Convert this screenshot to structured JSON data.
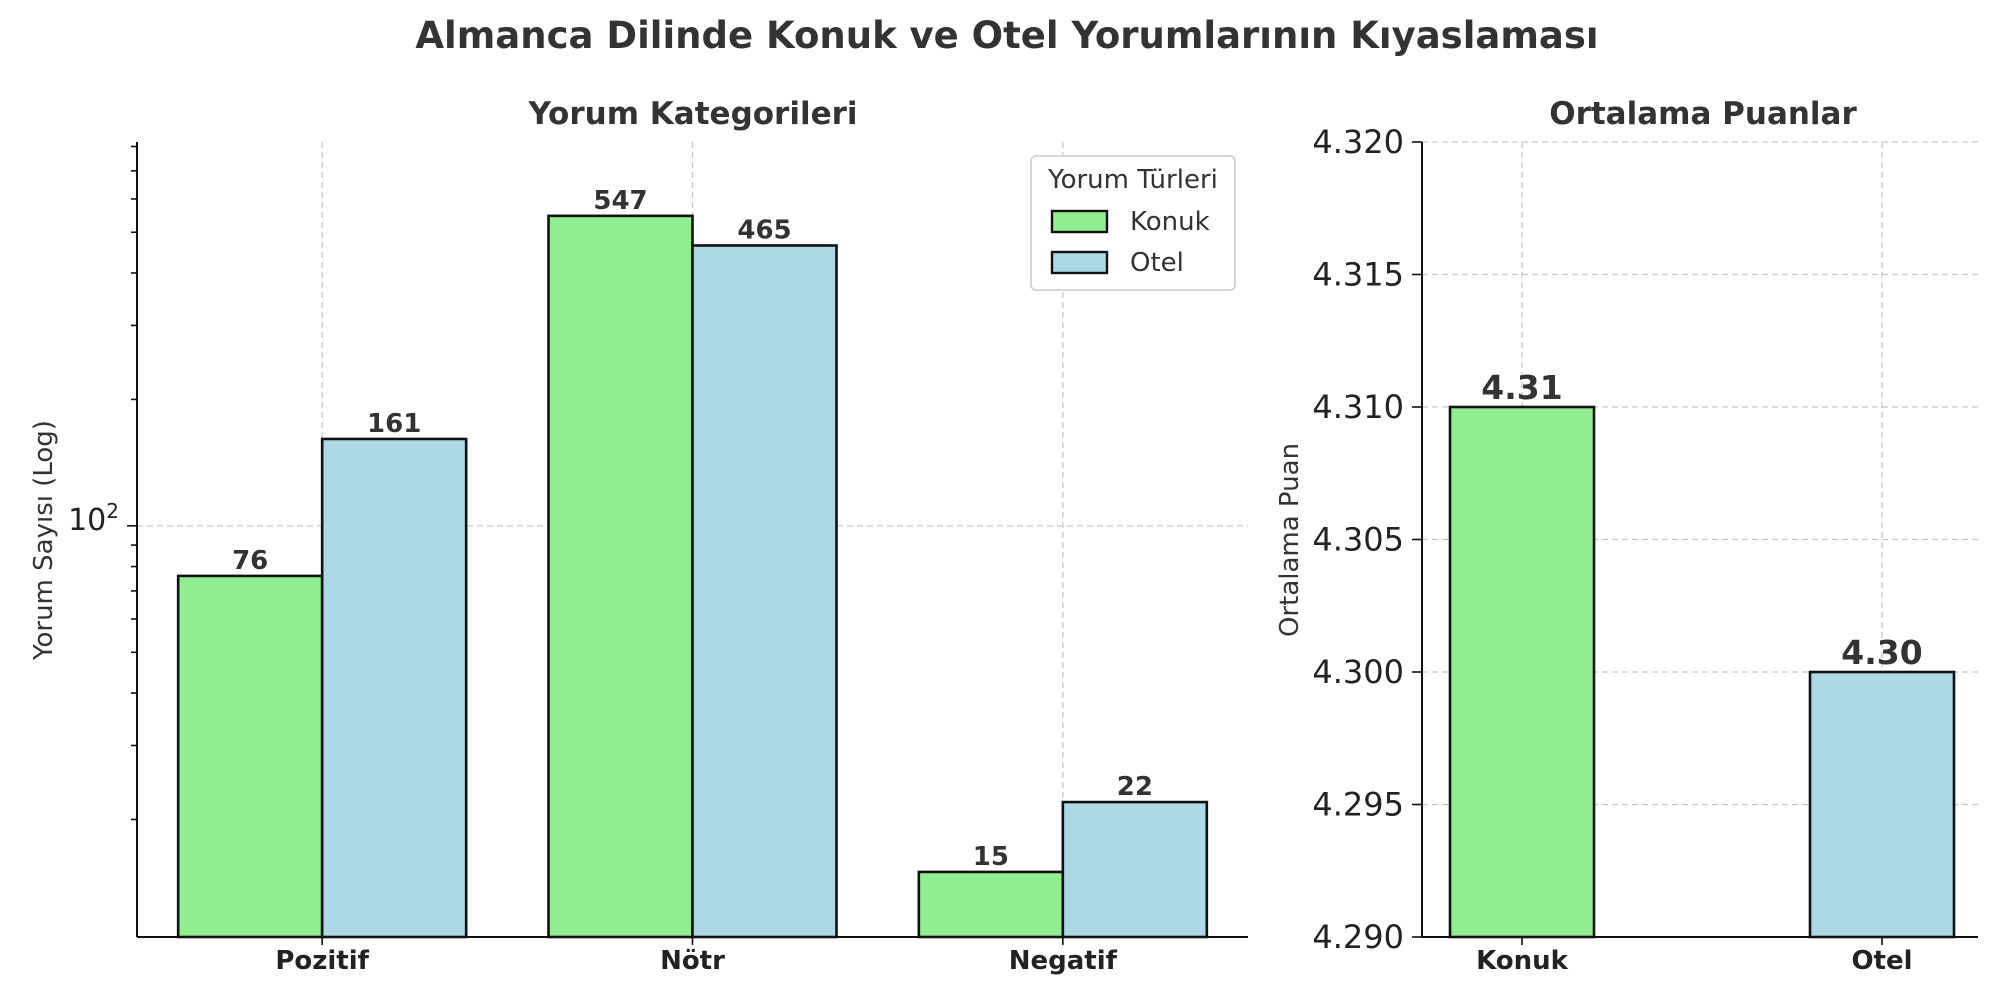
{
  "title": "Almanca Dilinde Konuk ve Otel Yorumlarının Kıyaslaması",
  "colors": {
    "konuk": "#90ee90",
    "otel": "#add8e6"
  },
  "chart_data": [
    {
      "type": "bar",
      "scale": "log",
      "title": "Yorum Kategorileri",
      "xlabel": "",
      "ylabel": "Yorum Sayısı (Log)",
      "categories": [
        "Pozitif",
        "Nötr",
        "Negatif"
      ],
      "series": [
        {
          "name": "Konuk",
          "values": [
            76,
            547,
            15
          ],
          "labels": [
            "76",
            "547",
            "15"
          ]
        },
        {
          "name": "Otel",
          "values": [
            161,
            465,
            22
          ],
          "labels": [
            "161",
            "465",
            "22"
          ]
        }
      ],
      "ylim": [
        10.5,
        820
      ],
      "ytick_label": {
        "base": "10",
        "exp": "2"
      },
      "legend": {
        "title": "Yorum Türleri",
        "position": "top-right"
      },
      "grid": true
    },
    {
      "type": "bar",
      "title": "Ortalama Puanlar",
      "xlabel": "",
      "ylabel": "Ortalama Puan",
      "categories": [
        "Konuk",
        "Otel"
      ],
      "values": [
        4.31,
        4.3
      ],
      "labels": [
        "4.31",
        "4.30"
      ],
      "ylim": [
        4.29,
        4.32
      ],
      "yticks": [
        "4.290",
        "4.295",
        "4.300",
        "4.305",
        "4.310",
        "4.315",
        "4.320"
      ],
      "grid": true
    }
  ]
}
